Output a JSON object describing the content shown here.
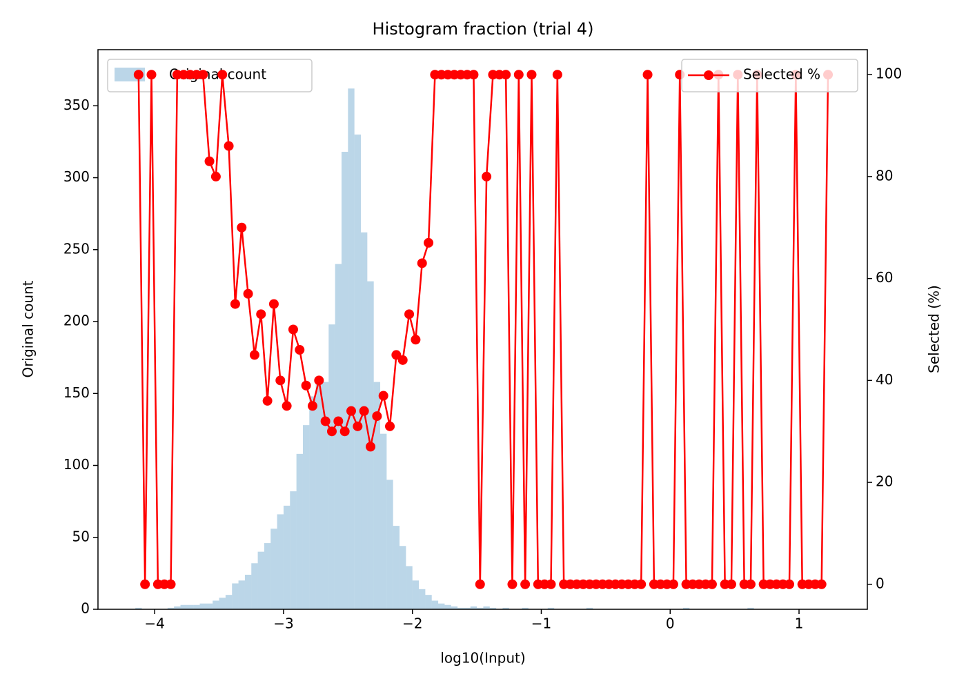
{
  "chart_data": {
    "type": "histogram",
    "title": "Histogram fraction (trial 4)",
    "xlabel": "log10(Input)",
    "ylabel": "Original count",
    "y2label": "Selected (%)",
    "xlim": [
      -4.44,
      1.53
    ],
    "xticks": [
      {
        "value": -4,
        "label": "−4"
      },
      {
        "value": -3,
        "label": "−3"
      },
      {
        "value": -2,
        "label": "−2"
      },
      {
        "value": -1,
        "label": "−1"
      },
      0,
      1
    ],
    "ylim": [
      0,
      389
    ],
    "yticks": [
      0,
      50,
      100,
      150,
      200,
      250,
      300,
      350
    ],
    "y2lim": [
      -4.9,
      104.9
    ],
    "y2ticks": [
      0,
      20,
      40,
      60,
      80,
      100
    ],
    "bins": [
      -4.15,
      -4.1,
      -4.05,
      -4,
      -3.95,
      -3.9,
      -3.85,
      -3.8,
      -3.75,
      -3.7,
      -3.65,
      -3.6,
      -3.55,
      -3.5,
      -3.45,
      -3.4,
      -3.35,
      -3.3,
      -3.25,
      -3.2,
      -3.15,
      -3.1,
      -3.05,
      -3,
      -2.95,
      -2.9,
      -2.85,
      -2.8,
      -2.75,
      -2.7,
      -2.65,
      -2.6,
      -2.55,
      -2.5,
      -2.45,
      -2.4,
      -2.35,
      -2.3,
      -2.25,
      -2.2,
      -2.15,
      -2.1,
      -2.05,
      -2,
      -1.95,
      -1.9,
      -1.85,
      -1.8,
      -1.75,
      -1.7,
      -1.65,
      -1.6,
      -1.55,
      -1.5,
      -1.45,
      -1.4,
      -1.35,
      -1.3,
      -1.25,
      -1.2,
      -1.15,
      -1.1,
      -1.05,
      -1,
      -0.95,
      -0.9,
      -0.85,
      -0.8,
      -0.75,
      -0.7,
      -0.65,
      -0.6,
      -0.55,
      -0.5,
      -0.45,
      -0.4,
      -0.35,
      -0.3,
      -0.25,
      -0.2,
      -0.15,
      -0.1,
      -0.05,
      0,
      0.05,
      0.1,
      0.15,
      0.2,
      0.25,
      0.3,
      0.35,
      0.4,
      0.45,
      0.5,
      0.55,
      0.6,
      0.65,
      0.7,
      0.75,
      0.8,
      0.85,
      0.9,
      0.95,
      1,
      1.05,
      1.1,
      1.15,
      1.2,
      1.25
    ],
    "series": [
      {
        "name": "Original count",
        "type": "histogram",
        "color": "#1f77b4",
        "alpha": 0.3,
        "legend": "upper left",
        "values": [
          1,
          0,
          0,
          0,
          0,
          1,
          2,
          3,
          3,
          3,
          4,
          4,
          6,
          8,
          10,
          18,
          20,
          24,
          32,
          40,
          46,
          56,
          66,
          72,
          82,
          108,
          128,
          148,
          160,
          158,
          198,
          240,
          318,
          362,
          330,
          262,
          228,
          158,
          122,
          90,
          58,
          44,
          30,
          20,
          14,
          10,
          6,
          4,
          3,
          2,
          1,
          1,
          2,
          1,
          2,
          1,
          0,
          1,
          0,
          0,
          1,
          0,
          0,
          0,
          1,
          0,
          0,
          0,
          0,
          0,
          1,
          0,
          0,
          0,
          0,
          0,
          0,
          0,
          0,
          0,
          0,
          0,
          0,
          0,
          0,
          1,
          0,
          0,
          0,
          0,
          0,
          0,
          0,
          0,
          0,
          1,
          0,
          0,
          0,
          0,
          0,
          0,
          0,
          0,
          0,
          0,
          0,
          0
        ]
      },
      {
        "name": "Selected %",
        "type": "line",
        "axis": "y2",
        "color": "#ff0000",
        "legend": "upper right",
        "x": [
          -4.125,
          -4.075,
          -4.025,
          -3.975,
          -3.925,
          -3.875,
          -3.825,
          -3.775,
          -3.725,
          -3.675,
          -3.625,
          -3.575,
          -3.525,
          -3.475,
          -3.425,
          -3.375,
          -3.325,
          -3.275,
          -3.225,
          -3.175,
          -3.125,
          -3.075,
          -3.025,
          -2.975,
          -2.925,
          -2.875,
          -2.825,
          -2.775,
          -2.725,
          -2.675,
          -2.625,
          -2.575,
          -2.525,
          -2.475,
          -2.425,
          -2.375,
          -2.325,
          -2.275,
          -2.225,
          -2.175,
          -2.125,
          -2.075,
          -2.025,
          -1.975,
          -1.925,
          -1.875,
          -1.825,
          -1.775,
          -1.725,
          -1.675,
          -1.625,
          -1.575,
          -1.525,
          -1.475,
          -1.425,
          -1.375,
          -1.325,
          -1.275,
          -1.225,
          -1.175,
          -1.125,
          -1.075,
          -1.025,
          -0.975,
          -0.925,
          -0.875,
          -0.825,
          -0.775,
          -0.725,
          -0.675,
          -0.625,
          -0.575,
          -0.525,
          -0.475,
          -0.425,
          -0.375,
          -0.325,
          -0.275,
          -0.225,
          -0.175,
          -0.125,
          -0.075,
          -0.025,
          0.025,
          0.075,
          0.125,
          0.175,
          0.225,
          0.275,
          0.325,
          0.375,
          0.425,
          0.475,
          0.525,
          0.575,
          0.625,
          0.675,
          0.725,
          0.775,
          0.825,
          0.875,
          0.925,
          0.975,
          1.025,
          1.075,
          1.125,
          1.175,
          1.225
        ],
        "values": [
          100,
          0,
          100,
          0,
          0,
          0,
          100,
          100,
          100,
          100,
          100,
          83,
          80,
          100,
          86,
          55,
          70,
          57,
          45,
          53,
          36,
          55,
          40,
          35,
          50,
          46,
          39,
          35,
          40,
          32,
          30,
          32,
          30,
          34,
          31,
          34,
          27,
          33,
          37,
          31,
          45,
          44,
          53,
          48,
          63,
          67,
          100,
          100,
          100,
          100,
          100,
          100,
          100,
          0,
          80,
          100,
          100,
          100,
          0,
          100,
          0,
          100,
          0,
          0,
          0,
          100,
          0,
          0,
          0,
          0,
          0,
          0,
          0,
          0,
          0,
          0,
          0,
          0,
          0,
          100,
          0,
          0,
          0,
          0,
          100,
          0,
          0,
          0,
          0,
          0,
          100,
          0,
          0,
          100,
          0,
          0,
          100,
          0,
          0,
          0,
          0,
          0,
          100,
          0,
          0,
          0,
          0,
          100
        ]
      }
    ]
  }
}
